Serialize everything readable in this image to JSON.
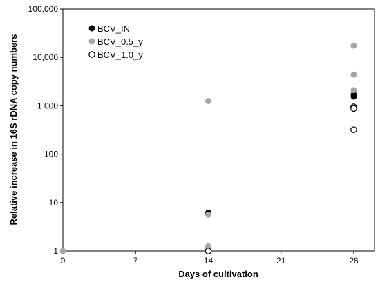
{
  "chart_data": {
    "type": "scatter",
    "title": "",
    "xlabel": "Days of cultivation",
    "ylabel": "Relative increase in 16S rDNA copy numbers",
    "x_ticks": [
      0,
      7,
      14,
      21,
      28
    ],
    "x_tick_labels": [
      "0",
      "7",
      "14",
      "21",
      "28"
    ],
    "xlim": [
      0,
      30
    ],
    "yscale": "log",
    "ylim": [
      1,
      100000
    ],
    "y_ticks": [
      1,
      10,
      100,
      1000,
      10000,
      100000
    ],
    "y_tick_labels": [
      "1",
      "10",
      "100",
      "1 000",
      "10,000",
      "100,000"
    ],
    "grid": false,
    "legend_position": "top-left",
    "series": [
      {
        "name": "BCV_IN",
        "marker": "filled-circle",
        "color": "#000000",
        "points": [
          {
            "x": 14,
            "y": 6.2
          },
          {
            "x": 28,
            "y": 1700
          },
          {
            "x": 28,
            "y": 1550
          }
        ]
      },
      {
        "name": "BCV_0.5_y",
        "marker": "filled-circle",
        "color": "#a6a6a6",
        "points": [
          {
            "x": 0,
            "y": 1
          },
          {
            "x": 14,
            "y": 1250
          },
          {
            "x": 14,
            "y": 5.6
          },
          {
            "x": 14,
            "y": 1.25
          },
          {
            "x": 14,
            "y": 1.1
          },
          {
            "x": 28,
            "y": 17500
          },
          {
            "x": 28,
            "y": 4400
          },
          {
            "x": 28,
            "y": 2100
          }
        ]
      },
      {
        "name": "BCV_1.0_y",
        "marker": "open-circle",
        "color": "#000000",
        "points": [
          {
            "x": 14,
            "y": 1.0
          },
          {
            "x": 28,
            "y": 950
          },
          {
            "x": 28,
            "y": 880
          },
          {
            "x": 28,
            "y": 320
          }
        ]
      }
    ]
  }
}
